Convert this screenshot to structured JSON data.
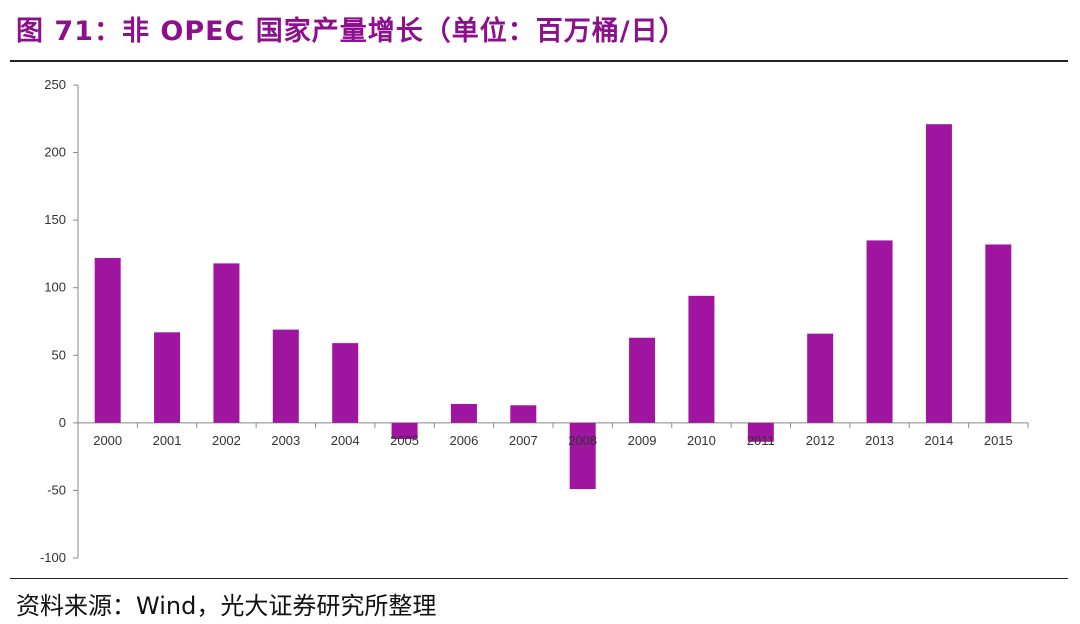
{
  "header": {
    "title": "图 71：非 OPEC 国家产量增长（单位：百万桶/日）"
  },
  "footer": {
    "source": "资料来源：Wind，光大证券研究所整理"
  },
  "chart_data": {
    "type": "bar",
    "title": "图 71：非 OPEC 国家产量增长（单位：百万桶/日）",
    "xlabel": "",
    "ylabel": "",
    "categories": [
      "2000",
      "2001",
      "2002",
      "2003",
      "2004",
      "2005",
      "2006",
      "2007",
      "2008",
      "2009",
      "2010",
      "2011",
      "2012",
      "2013",
      "2014",
      "2015"
    ],
    "values": [
      122,
      67,
      118,
      69,
      59,
      -12,
      14,
      13,
      -49,
      63,
      94,
      -14,
      66,
      135,
      221,
      132
    ],
    "ylim": [
      -100,
      250
    ],
    "yticks": [
      -100,
      -50,
      0,
      50,
      100,
      150,
      200,
      250
    ],
    "grid": false,
    "legend": "none",
    "bar_color": "#a0159f"
  }
}
